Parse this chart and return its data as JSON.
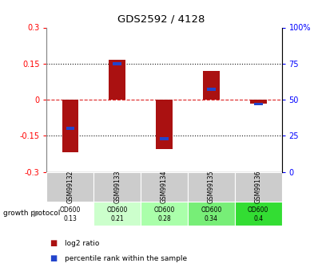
{
  "title": "GDS2592 / 4128",
  "samples": [
    "GSM99132",
    "GSM99133",
    "GSM99134",
    "GSM99135",
    "GSM99136"
  ],
  "log2_ratios": [
    -0.22,
    0.165,
    -0.205,
    0.12,
    -0.015
  ],
  "percentiles": [
    30,
    75,
    23,
    57,
    47
  ],
  "ylim_left": [
    -0.3,
    0.3
  ],
  "ylim_right": [
    0,
    100
  ],
  "yticks_left": [
    -0.3,
    -0.15,
    0,
    0.15,
    0.3
  ],
  "yticks_left_labels": [
    "-0.3",
    "-0.15",
    "0",
    "0.15",
    "0.3"
  ],
  "yticks_right": [
    0,
    25,
    50,
    75,
    100
  ],
  "yticks_right_labels": [
    "0",
    "25",
    "50",
    "75",
    "100%"
  ],
  "bar_color": "#aa1111",
  "pct_color": "#2244cc",
  "zero_line_color": "#dd2222",
  "dotted_color": "#111111",
  "bg_color": "#ffffff",
  "plot_bg": "#ffffff",
  "growth_protocol_label": "growth protocol",
  "protocol_values_line1": [
    "OD600",
    "OD600",
    "OD600",
    "OD600",
    "OD600"
  ],
  "protocol_values_line2": [
    "0.13",
    "0.21",
    "0.28",
    "0.34",
    "0.4"
  ],
  "protocol_colors": [
    "#ffffff",
    "#ccffcc",
    "#aaffaa",
    "#77ee77",
    "#33dd33"
  ],
  "sample_bg": "#cccccc",
  "bar_width": 0.35,
  "pct_bar_width": 0.18,
  "pct_bar_height": 0.013,
  "legend_red_label": "log2 ratio",
  "legend_blue_label": "percentile rank within the sample"
}
